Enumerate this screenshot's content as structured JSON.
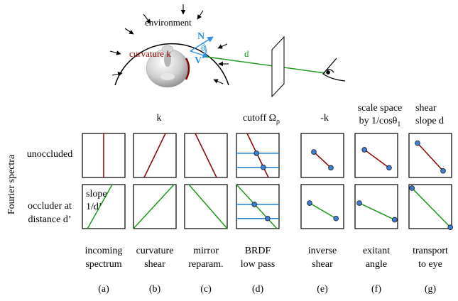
{
  "scene": {
    "environment_label": "environment",
    "curvature_label": "curvature k",
    "normal_label": "N",
    "view_label": "V",
    "theta_label": "θ",
    "theta_sub": "1",
    "distance_label": "d"
  },
  "axis_label": "Fourier spectra",
  "row_labels": {
    "unoccluded": "unoccluded",
    "occluded_line1": "occluder at",
    "occluded_line2": "distance d’"
  },
  "slope_label": {
    "line1": "slope",
    "line2": "1/d’"
  },
  "columns": [
    {
      "id": "a",
      "top": [],
      "bottom": [
        "incoming",
        "spectrum"
      ],
      "letter": "(a)"
    },
    {
      "id": "b",
      "top": [
        "k"
      ],
      "bottom": [
        "curvature",
        "shear"
      ],
      "letter": "(b)"
    },
    {
      "id": "c",
      "top": [],
      "bottom": [
        "mirror",
        "reparam."
      ],
      "letter": "(c)"
    },
    {
      "id": "d",
      "top": [
        "cutoff Ωρ"
      ],
      "bottom": [
        "BRDF",
        "low pass"
      ],
      "letter": "(d)"
    },
    {
      "id": "e",
      "top": [
        "-k"
      ],
      "bottom": [
        "inverse",
        "shear"
      ],
      "letter": "(e)"
    },
    {
      "id": "f",
      "top": [
        "scale space",
        "by 1/cosθ1"
      ],
      "bottom": [
        "exitant",
        "angle"
      ],
      "letter": "(f)"
    },
    {
      "id": "g",
      "top": [
        "shear",
        "slope  d"
      ],
      "bottom": [
        "transport",
        "to eye"
      ],
      "letter": "(g)"
    }
  ],
  "colors": {
    "red_line": "#8b0000",
    "green_line": "#1a9a1a",
    "blue_line": "#1e7fd6",
    "point_fill": "#3a7fd5",
    "scene_arrow": "#2b8fe8",
    "scene_red": "#8b0000",
    "scene_green": "#1a9a1a"
  }
}
